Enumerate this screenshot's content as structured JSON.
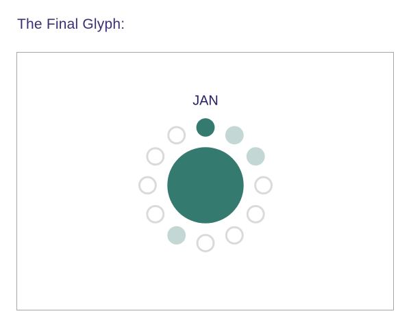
{
  "page": {
    "title": "The Final Glyph:"
  },
  "glyph": {
    "month_label": "JAN",
    "center_filled": true,
    "ring": [
      {
        "index": 1,
        "state": "filled"
      },
      {
        "index": 2,
        "state": "light"
      },
      {
        "index": 3,
        "state": "light"
      },
      {
        "index": 4,
        "state": "empty"
      },
      {
        "index": 5,
        "state": "empty"
      },
      {
        "index": 6,
        "state": "empty"
      },
      {
        "index": 7,
        "state": "empty"
      },
      {
        "index": 8,
        "state": "light"
      },
      {
        "index": 9,
        "state": "empty"
      },
      {
        "index": 10,
        "state": "empty"
      },
      {
        "index": 11,
        "state": "empty"
      },
      {
        "index": 12,
        "state": "empty"
      }
    ]
  },
  "colors": {
    "title_text": "#3b2f74",
    "label_text": "#241f5c",
    "filled": "#347a6f",
    "light": "#c3d7d4",
    "empty_stroke": "#dadada",
    "frame_border": "#a6a6a6"
  }
}
